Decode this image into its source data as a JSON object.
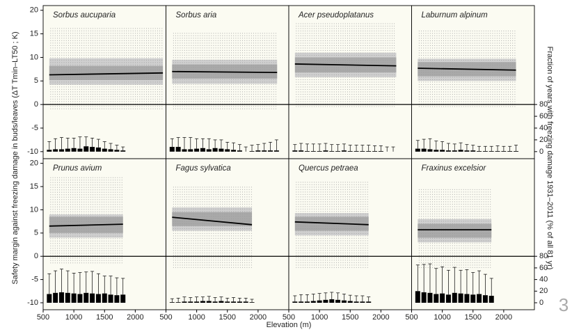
{
  "chart_data": {
    "type": "panels",
    "ylabel": "Safety margin against freezing damage in buds/leaves (ΔT Tmin–LT50 ; K)",
    "y2label": "Fraction of years with freezing damage 1931–2011 (% of all 81 yr)",
    "xlabel": "Elevation (m)",
    "xlim": [
      500,
      2500
    ],
    "xticks": [
      500,
      1000,
      1500,
      2000
    ],
    "ylim": [
      -11.5,
      21
    ],
    "yticks": [
      -10,
      -5,
      0,
      5,
      10,
      15,
      20
    ],
    "y2lim": [
      0,
      80
    ],
    "y2ticks": [
      0,
      20,
      40,
      60,
      80
    ],
    "panels": [
      {
        "title": "Sorbus aucuparia",
        "line_x": [
          600,
          2450
        ],
        "line_y": [
          6.3,
          6.7
        ],
        "band_outer": [
          4.2,
          9.8
        ],
        "band_inner": [
          5.2,
          8.2
        ],
        "dot_range": [
          -1,
          16.5
        ],
        "bar_x": [
          600,
          700,
          800,
          900,
          1000,
          1100,
          1200,
          1300,
          1400,
          1500,
          1600,
          1700,
          1800
        ],
        "bars": [
          3,
          4,
          4,
          5,
          6,
          5,
          9,
          8,
          7,
          5,
          4,
          3,
          2
        ],
        "errors": [
          14,
          18,
          20,
          18,
          17,
          20,
          16,
          15,
          14,
          12,
          10,
          8,
          6
        ]
      },
      {
        "title": "Sorbus aria",
        "line_x": [
          600,
          2310
        ],
        "line_y": [
          7.0,
          6.8
        ],
        "band_outer": [
          4.4,
          9.5
        ],
        "band_inner": [
          5.5,
          8.5
        ],
        "dot_range": [
          -1,
          15.5
        ],
        "bar_x": [
          600,
          700,
          800,
          900,
          1000,
          1100,
          1200,
          1300,
          1400,
          1500,
          1600,
          1700,
          1800,
          1900,
          2000,
          2100,
          2200,
          2300
        ],
        "bars": [
          8,
          8,
          4,
          4,
          5,
          6,
          4,
          6,
          5,
          4,
          3,
          2,
          0,
          1,
          2,
          2,
          2,
          2
        ],
        "errors": [
          14,
          16,
          20,
          20,
          17,
          16,
          18,
          14,
          15,
          12,
          12,
          10,
          8,
          10,
          10,
          12,
          14,
          18
        ]
      },
      {
        "title": "Acer pseudoplatanus",
        "line_x": [
          600,
          2250
        ],
        "line_y": [
          8.6,
          8.2
        ],
        "band_outer": [
          5.8,
          11
        ],
        "band_inner": [
          6.8,
          10
        ],
        "dot_range": [
          -0.5,
          17.5
        ],
        "bar_x": [
          600,
          700,
          800,
          900,
          1000,
          1100,
          1200,
          1300,
          1400,
          1500,
          1600,
          1700,
          1800,
          1900,
          2000,
          2100,
          2200
        ],
        "bars": [
          2,
          2,
          1,
          1,
          1,
          2,
          1,
          1,
          2,
          1,
          1,
          1,
          1,
          1,
          1,
          0,
          0
        ],
        "errors": [
          10,
          12,
          12,
          12,
          12,
          12,
          11,
          11,
          11,
          10,
          10,
          10,
          10,
          9,
          9,
          8,
          8
        ]
      },
      {
        "title": "Laburnum alpinum",
        "line_x": [
          600,
          2200
        ],
        "line_y": [
          7.7,
          7.3
        ],
        "band_outer": [
          5,
          9.7
        ],
        "band_inner": [
          6,
          9
        ],
        "dot_range": [
          -0.5,
          16
        ],
        "bar_x": [
          600,
          700,
          800,
          900,
          1000,
          1100,
          1200,
          1300,
          1400,
          1500,
          1600,
          1700,
          1800,
          1900,
          2000,
          2100,
          2200
        ],
        "bars": [
          5,
          5,
          4,
          3,
          3,
          2,
          2,
          3,
          2,
          2,
          1,
          1,
          1,
          1,
          1,
          1,
          1
        ],
        "errors": [
          14,
          16,
          18,
          15,
          14,
          12,
          11,
          12,
          10,
          9,
          8,
          8,
          8,
          9,
          8,
          8,
          10
        ]
      },
      {
        "title": "Prunus avium",
        "line_x": [
          600,
          1800
        ],
        "line_y": [
          6.5,
          6.9
        ],
        "band_outer": [
          4,
          9
        ],
        "band_inner": [
          5,
          8.5
        ],
        "dot_range": [
          -1.5,
          17
        ],
        "bar_x": [
          600,
          700,
          800,
          900,
          1000,
          1100,
          1200,
          1300,
          1400,
          1500,
          1600,
          1700,
          1800
        ],
        "bars": [
          15,
          17,
          18,
          17,
          16,
          15,
          17,
          16,
          15,
          16,
          14,
          13,
          14
        ],
        "errors": [
          35,
          38,
          40,
          38,
          35,
          37,
          36,
          38,
          35,
          30,
          32,
          30,
          28
        ]
      },
      {
        "title": "Fagus sylvatica",
        "line_x": [
          600,
          1900
        ],
        "line_y": [
          8.4,
          6.8
        ],
        "band_outer": [
          5.5,
          10.5
        ],
        "band_inner": [
          6.5,
          9.5
        ],
        "dot_range": [
          -2.5,
          15
        ],
        "bar_x": [
          600,
          700,
          800,
          900,
          1000,
          1100,
          1200,
          1300,
          1400,
          1500,
          1600,
          1700,
          1800,
          1900
        ],
        "bars": [
          1,
          1,
          2,
          2,
          2,
          3,
          3,
          2,
          3,
          2,
          2,
          2,
          2,
          1
        ],
        "errors": [
          6,
          7,
          8,
          7,
          8,
          7,
          8,
          7,
          7,
          6,
          7,
          6,
          6,
          5
        ]
      },
      {
        "title": "Quercus petraea",
        "line_x": [
          600,
          1800
        ],
        "line_y": [
          7.4,
          6.8
        ],
        "band_outer": [
          4.5,
          9.3
        ],
        "band_inner": [
          5.5,
          8.5
        ],
        "dot_range": [
          -2.5,
          16
        ],
        "bar_x": [
          600,
          700,
          800,
          900,
          1000,
          1100,
          1200,
          1300,
          1400,
          1500,
          1600,
          1700,
          1800
        ],
        "bars": [
          2,
          2,
          2,
          3,
          4,
          5,
          6,
          5,
          4,
          3,
          2,
          2,
          2
        ],
        "errors": [
          10,
          12,
          12,
          12,
          12,
          12,
          12,
          12,
          11,
          10,
          10,
          10,
          8
        ]
      },
      {
        "title": "Fraxinus excelsior",
        "line_x": [
          600,
          1800
        ],
        "line_y": [
          5.7,
          5.7
        ],
        "band_outer": [
          3,
          8
        ],
        "band_inner": [
          4,
          7
        ],
        "dot_range": [
          -2.5,
          14.5
        ],
        "bar_x": [
          600,
          700,
          800,
          900,
          1000,
          1100,
          1200,
          1300,
          1400,
          1500,
          1600,
          1700,
          1800
        ],
        "bars": [
          20,
          18,
          17,
          15,
          16,
          14,
          17,
          16,
          15,
          14,
          15,
          13,
          12
        ],
        "errors": [
          45,
          48,
          50,
          44,
          46,
          42,
          44,
          40,
          42,
          38,
          40,
          36,
          30
        ]
      }
    ]
  },
  "page_number": "3"
}
